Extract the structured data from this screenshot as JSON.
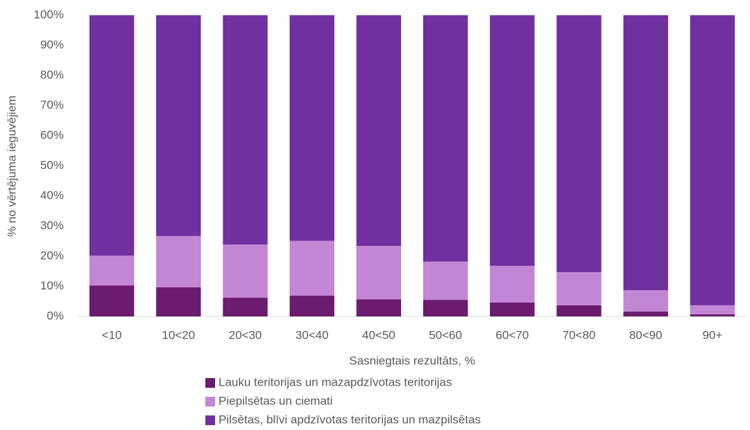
{
  "chart_data": {
    "type": "stacked_bar",
    "x_label": "Sasniegtais rezultāts, %",
    "y_label": "% no vērtējuma ieguvējiem",
    "categories": [
      "<10",
      "10<20",
      "20<30",
      "30<40",
      "40<50",
      "50<60",
      "60<70",
      "70<80",
      "80<90",
      "90+"
    ],
    "series": [
      {
        "name": "Lauku teritorijas un mazapdzīvotas teritorijas",
        "color": "#6b1c6e",
        "values": [
          10.3,
          9.7,
          6.2,
          6.9,
          5.7,
          5.5,
          4.6,
          3.7,
          1.6,
          0.7
        ]
      },
      {
        "name": "Piepilsētas un ciemati",
        "color": "#c386d5",
        "values": [
          9.9,
          17.0,
          17.7,
          18.2,
          17.7,
          12.7,
          12.2,
          11.0,
          7.1,
          3.0
        ]
      },
      {
        "name": "Pilsētas, blīvi apdzīvotas teritorijas un mazpilsētas",
        "color": "#7030a0",
        "values": [
          79.8,
          73.3,
          76.1,
          74.9,
          76.6,
          81.8,
          83.2,
          85.3,
          91.3,
          96.3
        ]
      }
    ],
    "ylim": [
      0,
      100
    ],
    "yticks": [
      {
        "value": 0,
        "label": "0%"
      },
      {
        "value": 10,
        "label": "10%"
      },
      {
        "value": 20,
        "label": "20%"
      },
      {
        "value": 30,
        "label": "30%"
      },
      {
        "value": 40,
        "label": "40%"
      },
      {
        "value": 50,
        "label": "50%"
      },
      {
        "value": 60,
        "label": "60%"
      },
      {
        "value": 70,
        "label": "70%"
      },
      {
        "value": 80,
        "label": "80%"
      },
      {
        "value": 90,
        "label": "90%"
      },
      {
        "value": 100,
        "label": "100%"
      }
    ],
    "grid": false,
    "legend": "bottom"
  }
}
